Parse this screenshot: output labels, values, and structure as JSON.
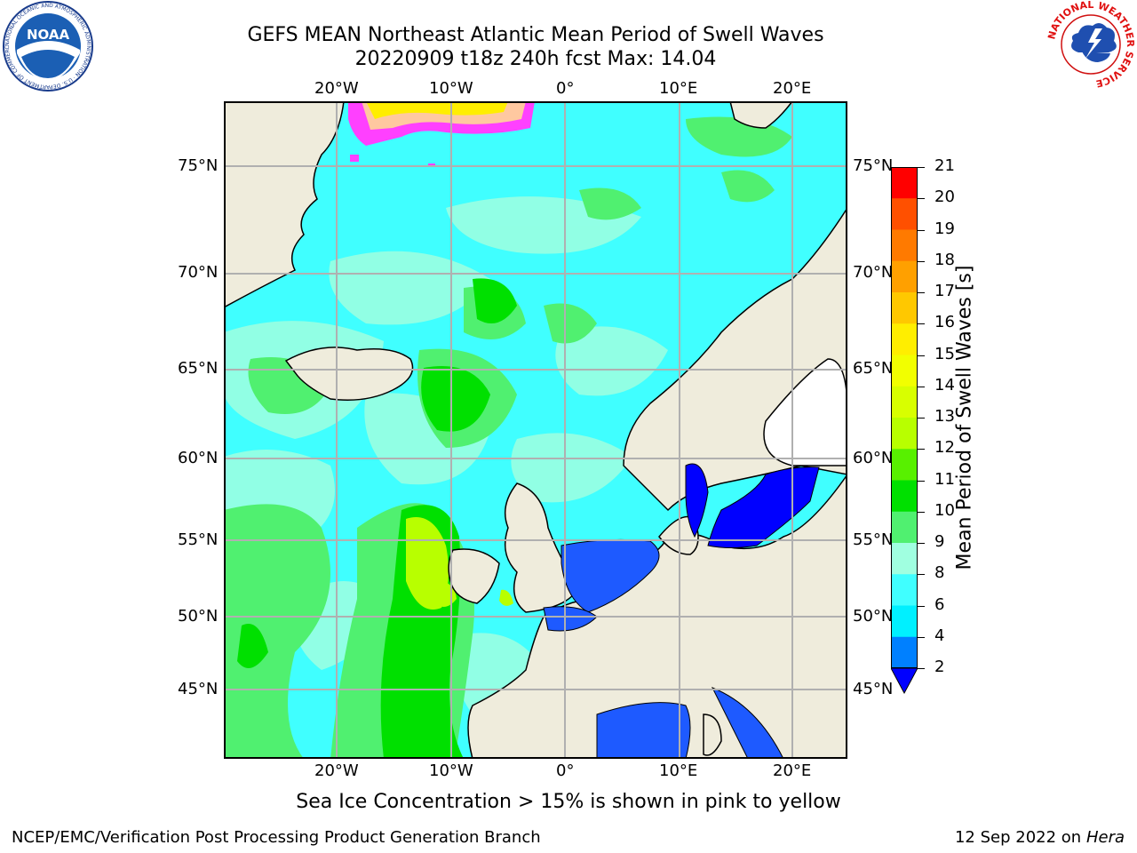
{
  "title_line1": "GEFS MEAN Northeast Atlantic Mean Period of Swell Waves",
  "title_line2": "20220909 t18z 240h fcst   Max: 14.04",
  "lon_ticks": [
    "20°W",
    "10°W",
    "0°",
    "10°E",
    "20°E"
  ],
  "lat_ticks_left": [
    "75°N",
    "70°N",
    "65°N",
    "60°N",
    "55°N",
    "50°N",
    "45°N"
  ],
  "lat_ticks_right": [
    "75°N",
    "70°N",
    "65°N",
    "60°N",
    "55°N",
    "50°N",
    "45°N"
  ],
  "colorbar": {
    "label": "Mean Period of Swell Waves [s]",
    "ticks": [
      "21",
      "20",
      "19",
      "18",
      "17",
      "16",
      "15",
      "14",
      "13",
      "12",
      "11",
      "10",
      "9",
      "8",
      "6",
      "4",
      "2"
    ],
    "colors": [
      "#ff0000",
      "#ff2a00",
      "#ff5000",
      "#ff7a00",
      "#ffa000",
      "#ffc800",
      "#ffee00",
      "#f2ff00",
      "#d8ff00",
      "#b8ff00",
      "#58f000",
      "#00e000",
      "#50f070",
      "#a0ffe0",
      "#40ffff",
      "#00f0ff",
      "#0080ff",
      "#0000ff"
    ],
    "extend_color": "#0000ff"
  },
  "sea_ice_note": "Sea Ice Concentration > 15% is shown in pink to yellow",
  "footer_left": "NCEP/EMC/Verification Post Processing Product Generation Branch",
  "footer_date": "12 Sep 2022 on",
  "footer_host": "Hera",
  "logos": {
    "left": "NOAA",
    "left_ring_text": "NATIONAL OCEANIC AND ATMOSPHERIC ADMINISTRATION · U.S. DEPARTMENT OF COMMERCE",
    "right_ring_text": "NATIONAL WEATHER SERVICE"
  },
  "colors": {
    "land": "#efecdc",
    "ocean_base": "#40ffff",
    "ocean_light": "#a0ffe0",
    "swell_green": "#50f070",
    "swell_bright_green": "#00e000",
    "swell_yellowgreen": "#b8ff00",
    "shallow_blue": "#1e5aff",
    "deep_blue": "#0000ff",
    "ice_pink": "#ff40ff",
    "ice_yellow": "#ffee00",
    "grid": "#b0b0b0"
  }
}
